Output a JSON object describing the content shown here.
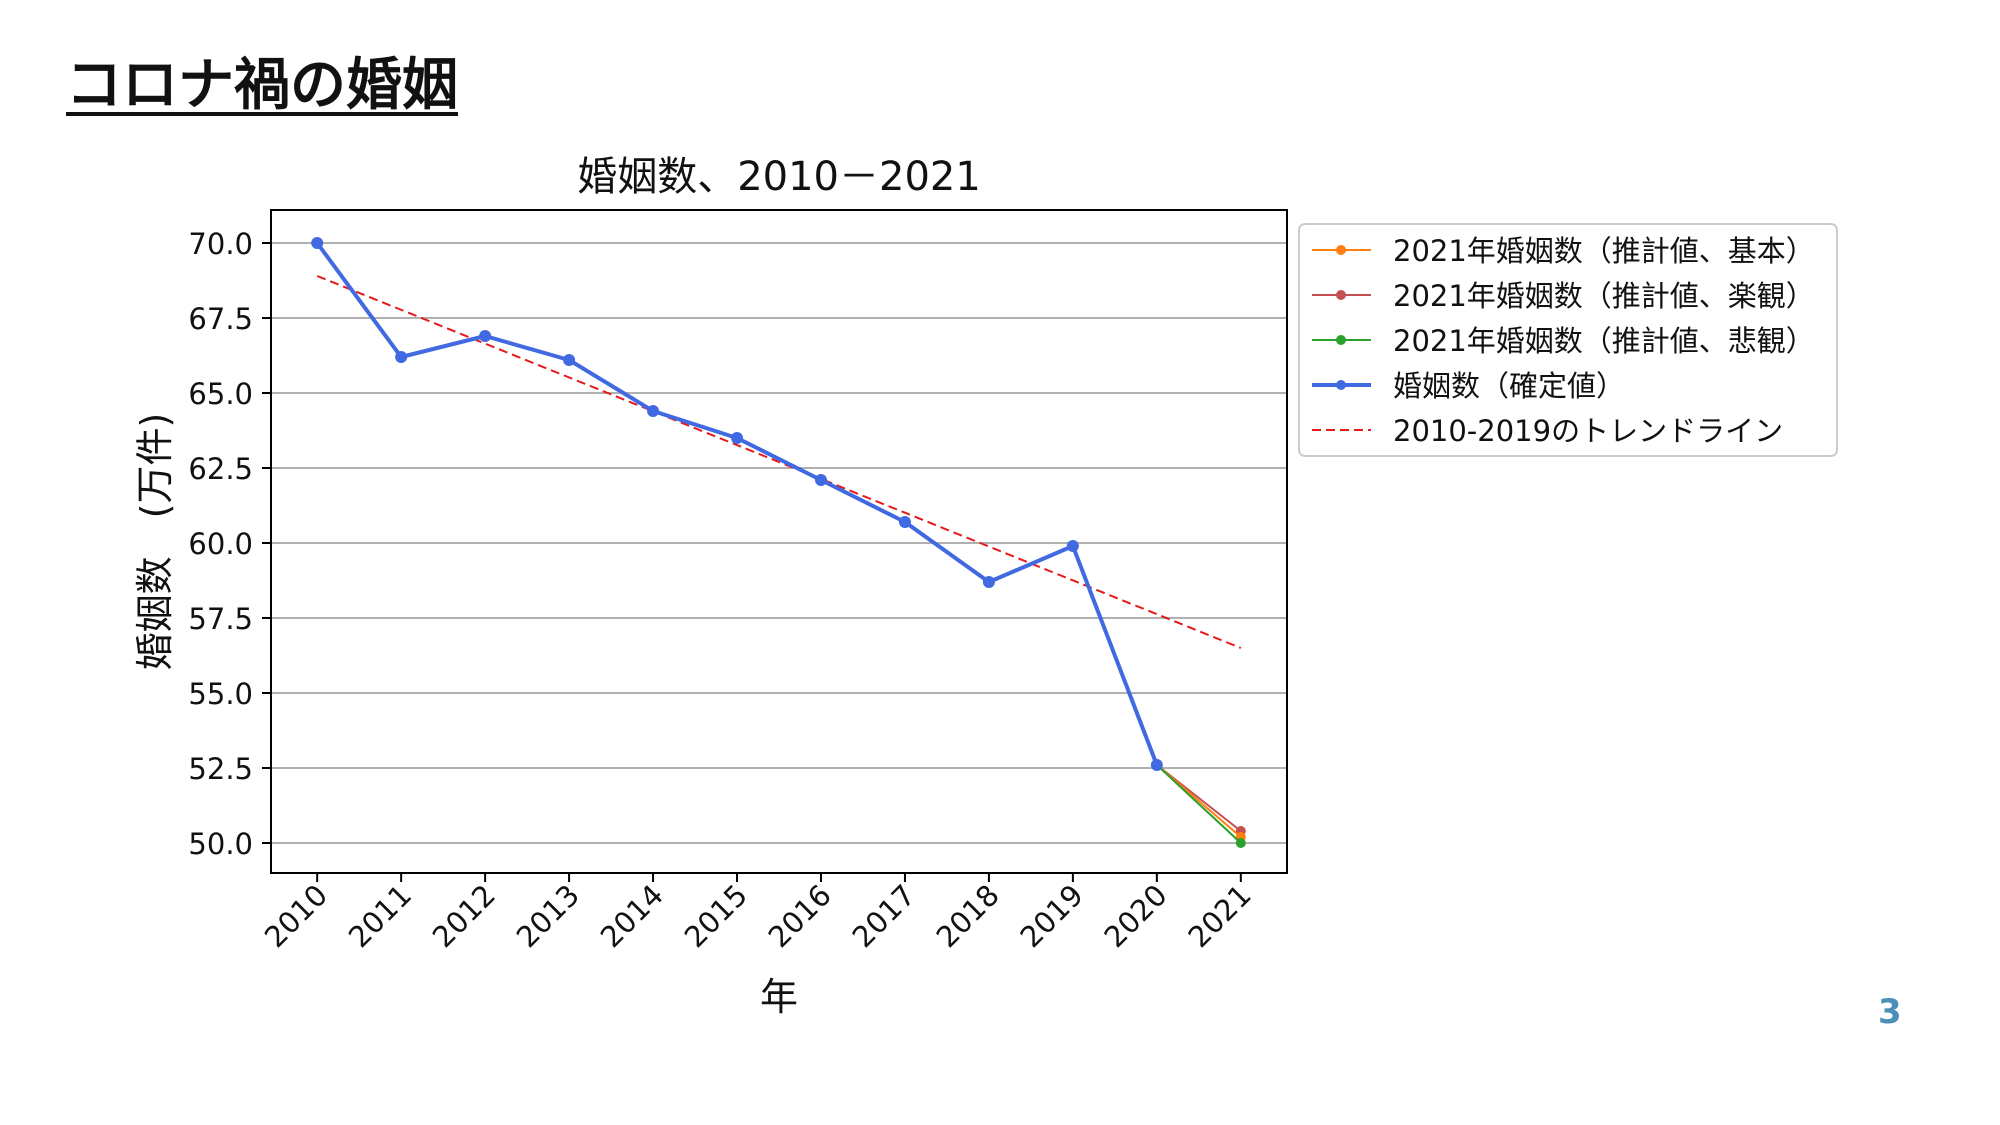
{
  "slide": {
    "title": "コロナ禍の婚姻",
    "page_number": "3"
  },
  "chart_data": {
    "type": "line",
    "title": "婚姻数、2010－2021",
    "xlabel": "年",
    "ylabel": "婚姻数　(万件)",
    "categories": [
      "2010",
      "2011",
      "2012",
      "2013",
      "2014",
      "2015",
      "2016",
      "2017",
      "2018",
      "2019",
      "2020",
      "2021"
    ],
    "ylim": [
      49.0,
      71.1
    ],
    "yticks": [
      "50.0",
      "52.5",
      "55.0",
      "57.5",
      "60.0",
      "62.5",
      "65.0",
      "67.5",
      "70.0"
    ],
    "ytick_values": [
      50.0,
      52.5,
      55.0,
      57.5,
      60.0,
      62.5,
      65.0,
      67.5,
      70.0
    ],
    "grid": "horizontal",
    "legend_position": "outside-right-top",
    "series": [
      {
        "name": "2021年婚姻数（推計値、基本）",
        "color": "#ff7f0e",
        "style": "solid-marker",
        "x": [
          "2020",
          "2021"
        ],
        "values": [
          52.6,
          50.2
        ]
      },
      {
        "name": "2021年婚姻数（推計値、楽観）",
        "color": "#c44e52",
        "style": "solid-marker",
        "x": [
          "2020",
          "2021"
        ],
        "values": [
          52.6,
          50.4
        ]
      },
      {
        "name": "2021年婚姻数（推計値、悲観）",
        "color": "#2ca02c",
        "style": "solid-marker",
        "x": [
          "2020",
          "2021"
        ],
        "values": [
          52.6,
          50.0
        ]
      },
      {
        "name": "婚姻数（確定値）",
        "color": "#4169e1",
        "style": "solid-marker-thick",
        "x": [
          "2010",
          "2011",
          "2012",
          "2013",
          "2014",
          "2015",
          "2016",
          "2017",
          "2018",
          "2019",
          "2020"
        ],
        "values": [
          70.0,
          66.2,
          66.9,
          66.1,
          64.4,
          63.5,
          62.1,
          60.7,
          58.7,
          59.9,
          52.6
        ]
      },
      {
        "name": "2010-2019のトレンドライン",
        "color": "#e8191a",
        "style": "dashed",
        "x": [
          "2010",
          "2021"
        ],
        "values": [
          68.9,
          56.5
        ]
      }
    ]
  }
}
